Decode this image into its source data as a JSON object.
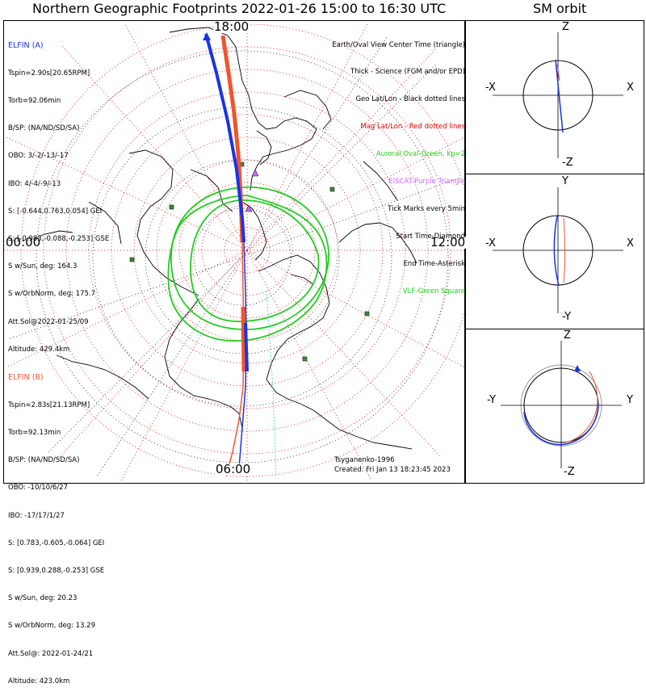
{
  "title": "Northern Geographic Footprints 2022-01-26 15:00 to 16:30 UTC",
  "sm_title": "SM orbit",
  "hour_labels": {
    "top": "18:00",
    "bottom": "06:00",
    "right": "12:00",
    "left": "00:00"
  },
  "elfin_a": {
    "label": "ELFIN (A)",
    "lines": [
      "Tspin=2.90s[20.65RPM]",
      "Torb=92.06min",
      "B/SP: (NA/ND/SD/SA)",
      "OBO: 3/-2/-13/-17",
      "IBO: 4/-4/-9/-13",
      "S: [-0.644,0.763,0.054] GEI",
      "S: [-0.983,-0.088,-0.253] GSE",
      "S w/Sun, deg: 164.3",
      "S w/OrbNorm, deg: 175.7",
      "Att.Sol@2022-01-25/09",
      "Altitude: 429.4km"
    ],
    "color": "#1a33e6"
  },
  "elfin_b": {
    "label": "ELFIN (B)",
    "lines": [
      "Tspin=2.83s[21.13RPM]",
      "Torb=92.13min",
      "B/SP: (NA/ND/SD/SA)",
      "OBO: -10/10/6/27",
      "IBO: -17/17/1/27",
      "S: [0.783,-0.605,-0.064] GEI",
      "S: [0.939,0.288,-0.253] GSE",
      "S w/Sun, deg: 20.23",
      "S w/OrbNorm, deg: 13.29",
      "Att.Sol@: 2022-01-24/21",
      "Altitude: 423.0km"
    ],
    "color": "#f0552e"
  },
  "legend": [
    {
      "text": "Earth/Oval View Center Time (triangle)",
      "color": "#000000"
    },
    {
      "text": "Thick - Science (FGM and/or EPD)",
      "color": "#000000"
    },
    {
      "text": "Geo Lat/Lon - Black dotted lines",
      "color": "#000000"
    },
    {
      "text": "Mag Lat/Lon - Red dotted lines",
      "color": "#e00000"
    },
    {
      "text": "Auroral Oval-Green, kp=2",
      "color": "#22cc22"
    },
    {
      "text": "EISCAT-Purple Triangle",
      "color": "#cc66ff"
    },
    {
      "text": "Tick Marks every 5min",
      "color": "#000000"
    },
    {
      "text": "Start Time-Diamond",
      "color": "#000000"
    },
    {
      "text": "End Time-Asterisk",
      "color": "#000000"
    },
    {
      "text": "VLF-Green Square",
      "color": "#22cc22"
    }
  ],
  "footer": {
    "model": "Tsyganenko-1996",
    "created": "Created: Fri Jan 13 18:23:45 2023"
  },
  "sm_panels": [
    {
      "top": "Z",
      "bottom": "-Z",
      "left": "-X",
      "right": "X"
    },
    {
      "top": "Y",
      "bottom": "-Y",
      "left": "-X",
      "right": "X"
    },
    {
      "top": "Z",
      "bottom": "-Z",
      "left": "-Y",
      "right": "Y"
    }
  ],
  "chart_data": {
    "type": "polar-map",
    "title": "Northern Geographic Footprints 2022-01-26 15:00 to 16:30 UTC",
    "auroral_oval_kp": 2,
    "tick_interval_min": 5,
    "series": [
      {
        "name": "ELFIN (A)",
        "color": "#1a33e6"
      },
      {
        "name": "ELFIN (B)",
        "color": "#f0552e"
      }
    ],
    "time_labels": [
      "18:00",
      "06:00",
      "12:00",
      "00:00"
    ]
  }
}
